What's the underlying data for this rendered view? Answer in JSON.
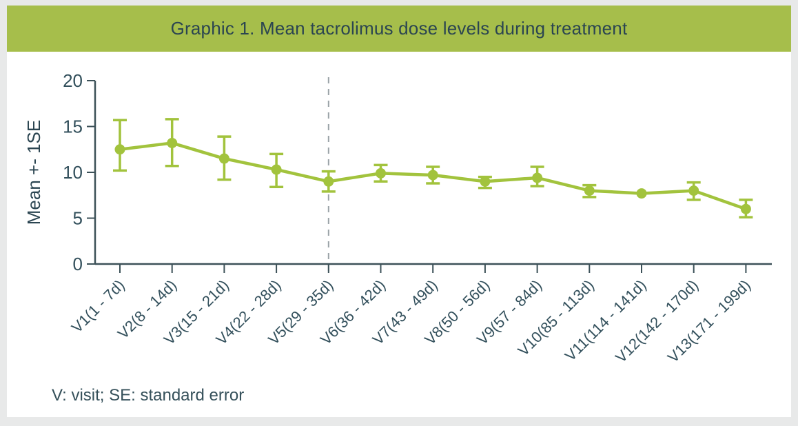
{
  "header": {
    "title": "Graphic 1. Mean tacrolimus dose levels during treatment",
    "background_color": "#a6be4b",
    "text_color": "#2b4551"
  },
  "footer": {
    "note": "V: visit; SE: standard error"
  },
  "chart_data": {
    "type": "line",
    "title": "Graphic 1. Mean tacrolimus dose levels during treatment",
    "xlabel": "",
    "ylabel": "Mean +- 1SE",
    "ylim": [
      0,
      20
    ],
    "yticks": [
      0,
      5,
      10,
      15,
      20
    ],
    "grid": false,
    "legend_position": "none",
    "categories": [
      "V1(1 - 7d)",
      "V2(8 - 14d)",
      "V3(15 - 21d)",
      "V4(22 - 28d)",
      "V5(29 - 35d)",
      "V6(36 - 42d)",
      "V7(43 - 49d)",
      "V8(50 - 56d)",
      "V9(57 - 84d)",
      "V10(85 - 113d)",
      "V11(114 - 141d)",
      "V12(142 - 170d)",
      "V13(171 - 199d)"
    ],
    "series": [
      {
        "name": "Mean tacrolimus dose",
        "values": [
          12.5,
          13.2,
          11.5,
          10.3,
          9.0,
          9.9,
          9.7,
          9.0,
          9.4,
          8.0,
          7.7,
          8.0,
          6.0
        ],
        "upper": [
          15.7,
          15.8,
          13.9,
          12.0,
          10.1,
          10.8,
          10.6,
          9.5,
          10.6,
          8.6,
          7.7,
          8.9,
          7.0
        ],
        "lower": [
          10.2,
          10.7,
          9.2,
          8.4,
          7.9,
          9.0,
          8.8,
          8.3,
          8.5,
          7.3,
          7.7,
          7.0,
          5.1
        ]
      }
    ],
    "reference_line": {
      "category_index": 4,
      "style": "dashed",
      "orientation": "vertical",
      "color": "#9aa2a6"
    },
    "colors": {
      "series": "#a2c33d",
      "axis": "#3c5158",
      "tick_label": "#33505c",
      "ylabel": "#2b4551"
    },
    "footnote": "V: visit; SE: standard error"
  }
}
